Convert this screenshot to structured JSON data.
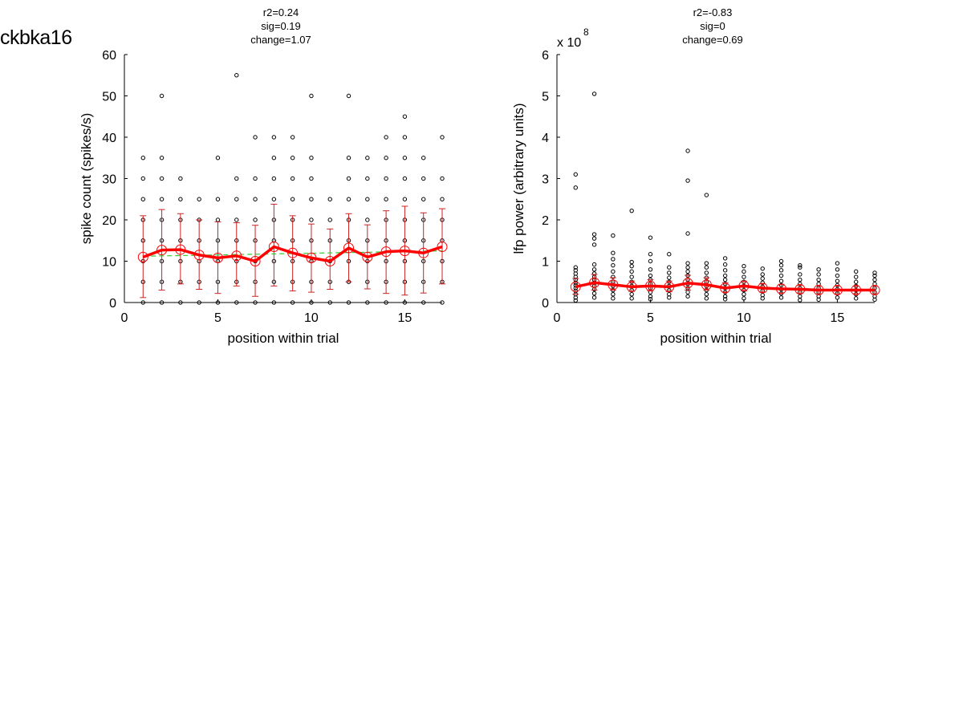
{
  "figure_title": "ckbka16",
  "chart_data": [
    {
      "type": "scatter",
      "title_lines": [
        "r2=0.24",
        "sig=0.19",
        "change=1.07"
      ],
      "xlabel": "position within trial",
      "ylabel": "spike count (spikes/s)",
      "xlim": [
        0,
        17
      ],
      "ylim": [
        0,
        60
      ],
      "xticks": [
        0,
        5,
        10,
        15
      ],
      "yticks": [
        0,
        10,
        20,
        30,
        40,
        50,
        60
      ],
      "exponent_label": "",
      "grid": false,
      "scatter_points": [
        [
          1,
          0
        ],
        [
          1,
          5
        ],
        [
          1,
          10
        ],
        [
          1,
          15
        ],
        [
          1,
          20
        ],
        [
          1,
          25
        ],
        [
          1,
          30
        ],
        [
          1,
          35
        ],
        [
          2,
          0
        ],
        [
          2,
          5
        ],
        [
          2,
          10
        ],
        [
          2,
          15
        ],
        [
          2,
          20
        ],
        [
          2,
          25
        ],
        [
          2,
          30
        ],
        [
          2,
          35
        ],
        [
          2,
          50
        ],
        [
          3,
          0
        ],
        [
          3,
          5
        ],
        [
          3,
          10
        ],
        [
          3,
          15
        ],
        [
          3,
          20
        ],
        [
          3,
          25
        ],
        [
          3,
          30
        ],
        [
          4,
          0
        ],
        [
          4,
          5
        ],
        [
          4,
          10
        ],
        [
          4,
          15
        ],
        [
          4,
          20
        ],
        [
          4,
          25
        ],
        [
          5,
          0
        ],
        [
          5,
          5
        ],
        [
          5,
          10
        ],
        [
          5,
          15
        ],
        [
          5,
          20
        ],
        [
          5,
          25
        ],
        [
          5,
          35
        ],
        [
          6,
          0
        ],
        [
          6,
          5
        ],
        [
          6,
          10
        ],
        [
          6,
          15
        ],
        [
          6,
          20
        ],
        [
          6,
          25
        ],
        [
          6,
          30
        ],
        [
          6,
          55
        ],
        [
          7,
          0
        ],
        [
          7,
          5
        ],
        [
          7,
          10
        ],
        [
          7,
          15
        ],
        [
          7,
          20
        ],
        [
          7,
          25
        ],
        [
          7,
          30
        ],
        [
          7,
          40
        ],
        [
          8,
          0
        ],
        [
          8,
          5
        ],
        [
          8,
          10
        ],
        [
          8,
          15
        ],
        [
          8,
          20
        ],
        [
          8,
          25
        ],
        [
          8,
          30
        ],
        [
          8,
          35
        ],
        [
          8,
          40
        ],
        [
          9,
          0
        ],
        [
          9,
          5
        ],
        [
          9,
          10
        ],
        [
          9,
          15
        ],
        [
          9,
          20
        ],
        [
          9,
          25
        ],
        [
          9,
          30
        ],
        [
          9,
          35
        ],
        [
          9,
          40
        ],
        [
          10,
          0
        ],
        [
          10,
          5
        ],
        [
          10,
          10
        ],
        [
          10,
          15
        ],
        [
          10,
          20
        ],
        [
          10,
          25
        ],
        [
          10,
          30
        ],
        [
          10,
          35
        ],
        [
          10,
          50
        ],
        [
          11,
          0
        ],
        [
          11,
          5
        ],
        [
          11,
          10
        ],
        [
          11,
          15
        ],
        [
          11,
          20
        ],
        [
          11,
          25
        ],
        [
          12,
          0
        ],
        [
          12,
          5
        ],
        [
          12,
          10
        ],
        [
          12,
          15
        ],
        [
          12,
          20
        ],
        [
          12,
          25
        ],
        [
          12,
          30
        ],
        [
          12,
          35
        ],
        [
          12,
          50
        ],
        [
          13,
          0
        ],
        [
          13,
          5
        ],
        [
          13,
          10
        ],
        [
          13,
          15
        ],
        [
          13,
          20
        ],
        [
          13,
          25
        ],
        [
          13,
          30
        ],
        [
          13,
          35
        ],
        [
          14,
          0
        ],
        [
          14,
          5
        ],
        [
          14,
          10
        ],
        [
          14,
          15
        ],
        [
          14,
          20
        ],
        [
          14,
          25
        ],
        [
          14,
          30
        ],
        [
          14,
          35
        ],
        [
          14,
          40
        ],
        [
          15,
          0
        ],
        [
          15,
          5
        ],
        [
          15,
          10
        ],
        [
          15,
          15
        ],
        [
          15,
          20
        ],
        [
          15,
          25
        ],
        [
          15,
          30
        ],
        [
          15,
          35
        ],
        [
          15,
          40
        ],
        [
          15,
          45
        ],
        [
          16,
          0
        ],
        [
          16,
          5
        ],
        [
          16,
          10
        ],
        [
          16,
          15
        ],
        [
          16,
          20
        ],
        [
          16,
          25
        ],
        [
          16,
          30
        ],
        [
          16,
          35
        ],
        [
          17,
          0
        ],
        [
          17,
          5
        ],
        [
          17,
          10
        ],
        [
          17,
          15
        ],
        [
          17,
          20
        ],
        [
          17,
          25
        ],
        [
          17,
          30
        ],
        [
          17,
          40
        ]
      ],
      "mean": [
        11,
        12.7,
        12.8,
        11.5,
        10.8,
        11.3,
        10,
        13.5,
        12,
        10.8,
        10,
        13.2,
        11,
        12.3,
        12.5,
        12,
        13.5
      ],
      "std_low": [
        1.2,
        3,
        4.5,
        3.2,
        2.2,
        4,
        1.5,
        4,
        2.8,
        2.5,
        3.2,
        5,
        3.3,
        2.2,
        1.8,
        2.3,
        4.5
      ],
      "std_high": [
        21,
        22.5,
        21.5,
        20,
        19.5,
        19.3,
        18.7,
        23.8,
        21,
        19,
        17.8,
        21.5,
        18.8,
        22.2,
        23.3,
        21.7,
        22.7
      ],
      "fit": [
        11.2,
        12.5
      ],
      "colors": {
        "mean": "#ff0000",
        "errorbar": "#cc2222",
        "fit": "#33cc33",
        "points": "#000000"
      }
    },
    {
      "type": "scatter",
      "title_lines": [
        "r2=-0.83",
        "sig=0",
        "change=0.69"
      ],
      "xlabel": "position within trial",
      "ylabel": "lfp power (arbitrary units)",
      "xlim": [
        0,
        17
      ],
      "ylim": [
        0,
        6
      ],
      "xticks": [
        0,
        5,
        10,
        15
      ],
      "yticks": [
        0,
        1,
        2,
        3,
        4,
        5,
        6
      ],
      "exponent_label": "x 10",
      "exponent_power": "8",
      "grid": false,
      "scatter_points": [
        [
          1,
          3.1
        ],
        [
          1,
          2.78
        ],
        [
          1,
          0.85
        ],
        [
          1,
          0.78
        ],
        [
          1,
          0.7
        ],
        [
          1,
          0.62
        ],
        [
          1,
          0.55
        ],
        [
          1,
          0.48
        ],
        [
          1,
          0.42
        ],
        [
          1,
          0.35
        ],
        [
          1,
          0.28
        ],
        [
          1,
          0.2
        ],
        [
          1,
          0.12
        ],
        [
          1,
          0.05
        ],
        [
          2,
          5.05
        ],
        [
          2,
          1.65
        ],
        [
          2,
          1.55
        ],
        [
          2,
          1.4
        ],
        [
          2,
          0.92
        ],
        [
          2,
          0.8
        ],
        [
          2,
          0.7
        ],
        [
          2,
          0.62
        ],
        [
          2,
          0.55
        ],
        [
          2,
          0.48
        ],
        [
          2,
          0.4
        ],
        [
          2,
          0.32
        ],
        [
          2,
          0.22
        ],
        [
          2,
          0.12
        ],
        [
          3,
          1.62
        ],
        [
          3,
          1.2
        ],
        [
          3,
          1.05
        ],
        [
          3,
          0.9
        ],
        [
          3,
          0.75
        ],
        [
          3,
          0.62
        ],
        [
          3,
          0.5
        ],
        [
          3,
          0.4
        ],
        [
          3,
          0.3
        ],
        [
          3,
          0.2
        ],
        [
          3,
          0.1
        ],
        [
          4,
          2.22
        ],
        [
          4,
          0.98
        ],
        [
          4,
          0.88
        ],
        [
          4,
          0.75
        ],
        [
          4,
          0.62
        ],
        [
          4,
          0.5
        ],
        [
          4,
          0.4
        ],
        [
          4,
          0.3
        ],
        [
          4,
          0.2
        ],
        [
          4,
          0.1
        ],
        [
          5,
          1.57
        ],
        [
          5,
          1.17
        ],
        [
          5,
          1.0
        ],
        [
          5,
          0.8
        ],
        [
          5,
          0.65
        ],
        [
          5,
          0.55
        ],
        [
          5,
          0.45
        ],
        [
          5,
          0.35
        ],
        [
          5,
          0.25
        ],
        [
          5,
          0.15
        ],
        [
          5,
          0.08
        ],
        [
          6,
          1.17
        ],
        [
          6,
          0.85
        ],
        [
          6,
          0.72
        ],
        [
          6,
          0.6
        ],
        [
          6,
          0.5
        ],
        [
          6,
          0.4
        ],
        [
          6,
          0.3
        ],
        [
          6,
          0.2
        ],
        [
          6,
          0.12
        ],
        [
          7,
          3.67
        ],
        [
          7,
          2.95
        ],
        [
          7,
          1.67
        ],
        [
          7,
          0.95
        ],
        [
          7,
          0.85
        ],
        [
          7,
          0.75
        ],
        [
          7,
          0.65
        ],
        [
          7,
          0.55
        ],
        [
          7,
          0.45
        ],
        [
          7,
          0.35
        ],
        [
          7,
          0.25
        ],
        [
          7,
          0.15
        ],
        [
          8,
          2.6
        ],
        [
          8,
          0.95
        ],
        [
          8,
          0.85
        ],
        [
          8,
          0.72
        ],
        [
          8,
          0.6
        ],
        [
          8,
          0.5
        ],
        [
          8,
          0.4
        ],
        [
          8,
          0.3
        ],
        [
          8,
          0.2
        ],
        [
          8,
          0.1
        ],
        [
          9,
          1.07
        ],
        [
          9,
          0.92
        ],
        [
          9,
          0.78
        ],
        [
          9,
          0.65
        ],
        [
          9,
          0.55
        ],
        [
          9,
          0.45
        ],
        [
          9,
          0.35
        ],
        [
          9,
          0.25
        ],
        [
          9,
          0.15
        ],
        [
          9,
          0.08
        ],
        [
          10,
          0.88
        ],
        [
          10,
          0.75
        ],
        [
          10,
          0.62
        ],
        [
          10,
          0.5
        ],
        [
          10,
          0.4
        ],
        [
          10,
          0.3
        ],
        [
          10,
          0.2
        ],
        [
          10,
          0.1
        ],
        [
          11,
          0.82
        ],
        [
          11,
          0.68
        ],
        [
          11,
          0.58
        ],
        [
          11,
          0.48
        ],
        [
          11,
          0.38
        ],
        [
          11,
          0.28
        ],
        [
          11,
          0.18
        ],
        [
          11,
          0.1
        ],
        [
          12,
          1.0
        ],
        [
          12,
          0.9
        ],
        [
          12,
          0.78
        ],
        [
          12,
          0.65
        ],
        [
          12,
          0.52
        ],
        [
          12,
          0.42
        ],
        [
          12,
          0.32
        ],
        [
          12,
          0.22
        ],
        [
          12,
          0.12
        ],
        [
          13,
          0.9
        ],
        [
          13,
          0.85
        ],
        [
          13,
          0.68
        ],
        [
          13,
          0.55
        ],
        [
          13,
          0.45
        ],
        [
          13,
          0.35
        ],
        [
          13,
          0.25
        ],
        [
          13,
          0.15
        ],
        [
          13,
          0.06
        ],
        [
          14,
          0.8
        ],
        [
          14,
          0.68
        ],
        [
          14,
          0.55
        ],
        [
          14,
          0.45
        ],
        [
          14,
          0.35
        ],
        [
          14,
          0.25
        ],
        [
          14,
          0.15
        ],
        [
          14,
          0.07
        ],
        [
          15,
          0.95
        ],
        [
          15,
          0.8
        ],
        [
          15,
          0.65
        ],
        [
          15,
          0.52
        ],
        [
          15,
          0.42
        ],
        [
          15,
          0.32
        ],
        [
          15,
          0.22
        ],
        [
          15,
          0.12
        ],
        [
          16,
          0.75
        ],
        [
          16,
          0.62
        ],
        [
          16,
          0.5
        ],
        [
          16,
          0.4
        ],
        [
          16,
          0.3
        ],
        [
          16,
          0.2
        ],
        [
          16,
          0.1
        ],
        [
          17,
          0.72
        ],
        [
          17,
          0.65
        ],
        [
          17,
          0.55
        ],
        [
          17,
          0.45
        ],
        [
          17,
          0.35
        ],
        [
          17,
          0.25
        ],
        [
          17,
          0.15
        ],
        [
          17,
          0.07
        ]
      ],
      "mean": [
        0.38,
        0.48,
        0.43,
        0.38,
        0.4,
        0.38,
        0.47,
        0.43,
        0.35,
        0.4,
        0.35,
        0.33,
        0.32,
        0.3,
        0.3,
        0.3,
        0.3
      ],
      "std_low": [
        0.2,
        0.3,
        0.3,
        0.27,
        0.28,
        0.26,
        0.3,
        0.3,
        0.25,
        0.28,
        0.25,
        0.23,
        0.22,
        0.21,
        0.21,
        0.21,
        0.21
      ],
      "std_high": [
        0.58,
        0.68,
        0.6,
        0.52,
        0.55,
        0.52,
        0.66,
        0.6,
        0.48,
        0.52,
        0.46,
        0.44,
        0.42,
        0.4,
        0.4,
        0.4,
        0.4
      ],
      "fit": [],
      "colors": {
        "mean": "#ff0000",
        "errorbar": "#cc2222",
        "fit": "#33cc33",
        "points": "#000000"
      }
    }
  ]
}
